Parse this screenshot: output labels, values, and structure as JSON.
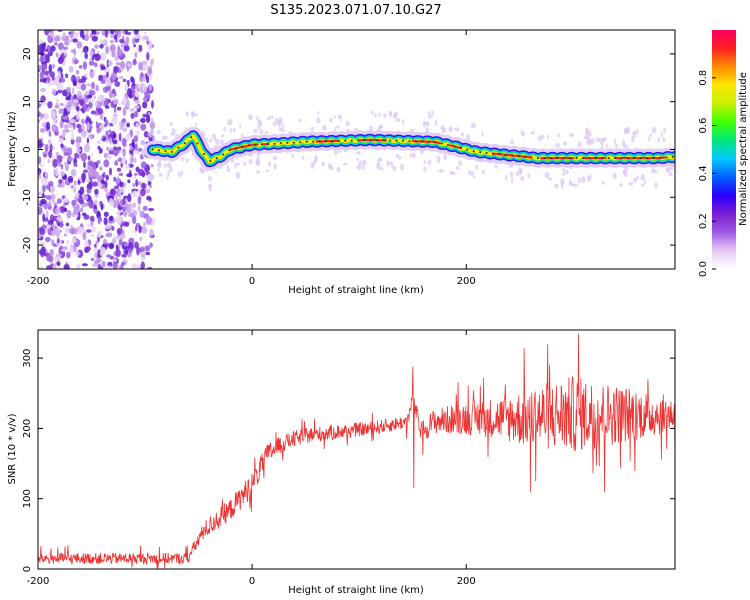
{
  "title": "S135.2023.071.07.10.G27",
  "chart_data": [
    {
      "type": "heatmap",
      "panel": "spectrogram",
      "xlabel": "Height of straight line (km)",
      "ylabel": "Frequency (Hz)",
      "xlim": [
        -200,
        395
      ],
      "ylim": [
        -25,
        25
      ],
      "xticks": [
        -200,
        0,
        200
      ],
      "yticks": [
        -20,
        -10,
        0,
        10,
        20
      ],
      "colorbar": {
        "label": "Normalized spectral amplitude",
        "range": [
          0,
          1
        ],
        "ticks": [
          0.0,
          0.2,
          0.4,
          0.6,
          0.8
        ],
        "colors": [
          "#ffffff",
          "#e6c8f5",
          "#a05ae6",
          "#7a1fd0",
          "#2a00ff",
          "#0060ff",
          "#00c8ff",
          "#00e87a",
          "#40ff00",
          "#c8f000",
          "#ffe600",
          "#ff8c00",
          "#ff2020",
          "#ff0060"
        ]
      },
      "noise_region_x": [
        -200,
        -93
      ],
      "ridge": {
        "x": [
          -93,
          -75,
          -62,
          -55,
          -48,
          -40,
          -30,
          -20,
          0,
          20,
          50,
          80,
          110,
          140,
          170,
          190,
          210,
          240,
          255,
          265,
          300,
          340,
          380,
          395
        ],
        "freq": [
          0,
          -0.5,
          1.5,
          3,
          0,
          -2.5,
          -1.5,
          0,
          1,
          1.2,
          1.6,
          1.8,
          2,
          1.8,
          1.6,
          0.6,
          -0.5,
          -1.2,
          -1.5,
          -1.8,
          -1.8,
          -1.8,
          -1.8,
          -1.5
        ]
      }
    },
    {
      "type": "line",
      "panel": "snr",
      "xlabel": "Height of straight line (km)",
      "ylabel": "SNR (10 * v/v)",
      "xlim": [
        -200,
        395
      ],
      "ylim": [
        0,
        340
      ],
      "xticks": [
        -200,
        0,
        200
      ],
      "yticks": [
        0,
        100,
        200,
        300
      ],
      "color": "#ee3333",
      "trend": {
        "x": [
          -200,
          -150,
          -100,
          -60,
          -45,
          -20,
          0,
          15,
          30,
          50,
          80,
          110,
          130,
          145,
          150,
          158,
          170,
          200,
          250,
          300,
          350,
          395
        ],
        "y": [
          15,
          15,
          15,
          15,
          55,
          85,
          120,
          165,
          180,
          190,
          195,
          200,
          205,
          210,
          240,
          195,
          210,
          215,
          215,
          220,
          220,
          220
        ]
      },
      "noise_amplitude": {
        "x": [
          -200,
          -60,
          -40,
          0,
          30,
          100,
          140,
          170,
          230,
          260,
          300,
          350,
          395
        ],
        "amp": [
          8,
          8,
          14,
          18,
          12,
          10,
          10,
          18,
          30,
          45,
          55,
          40,
          25
        ]
      },
      "peak_values": [
        {
          "x": 150,
          "y": 288
        },
        {
          "x": 151,
          "y": 115
        },
        {
          "x": 276,
          "y": 320
        },
        {
          "x": 305,
          "y": 335
        },
        {
          "x": 260,
          "y": 110
        }
      ]
    }
  ]
}
